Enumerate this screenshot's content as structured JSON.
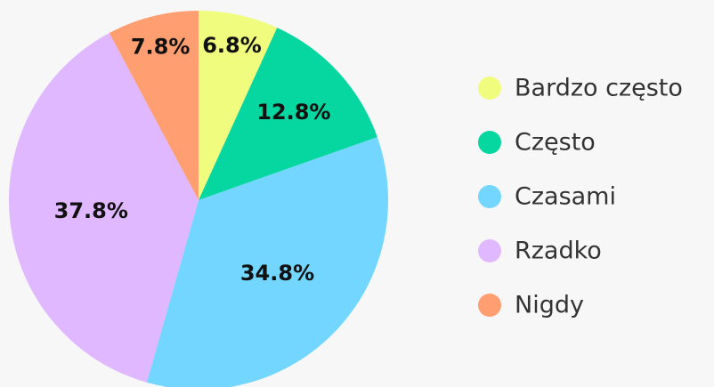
{
  "chart_data": {
    "type": "pie",
    "categories": [
      "Bardzo często",
      "Często",
      "Czasami",
      "Rzadko",
      "Nigdy"
    ],
    "values": [
      6.8,
      12.8,
      34.8,
      37.8,
      7.8
    ],
    "value_labels": [
      "6.8%",
      "12.8%",
      "34.8%",
      "37.8%",
      "7.8%"
    ],
    "colors": [
      "#f0fc7e",
      "#06d6a0",
      "#72d6ff",
      "#e0b8ff",
      "#ff9e70"
    ],
    "legend": "right"
  }
}
